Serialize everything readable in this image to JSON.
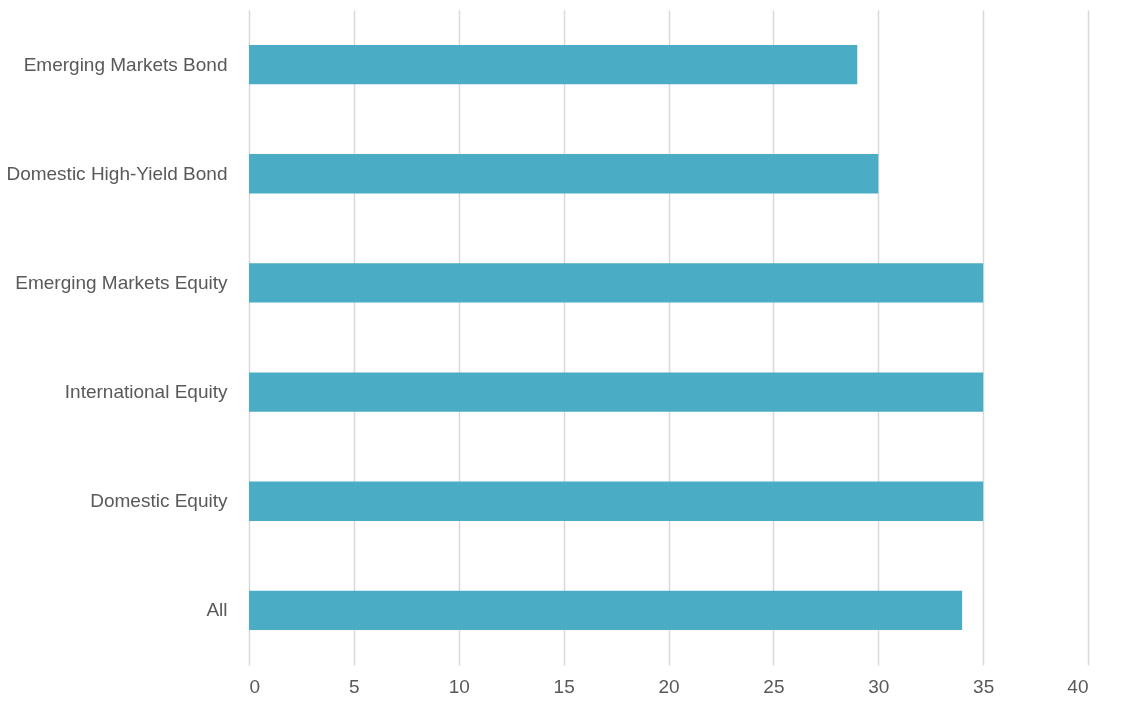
{
  "chart_data": {
    "type": "bar",
    "orientation": "horizontal",
    "categories": [
      "Emerging Markets Bond",
      "Domestic High-Yield Bond",
      "Emerging Markets Equity",
      "International Equity",
      "Domestic Equity",
      "All"
    ],
    "values": [
      29,
      30,
      35,
      35,
      35,
      34
    ],
    "color": "#4bacc6",
    "xlim": [
      0,
      40
    ],
    "xticks": [
      0,
      5,
      10,
      15,
      20,
      25,
      30,
      35,
      40
    ],
    "grid": "x"
  }
}
